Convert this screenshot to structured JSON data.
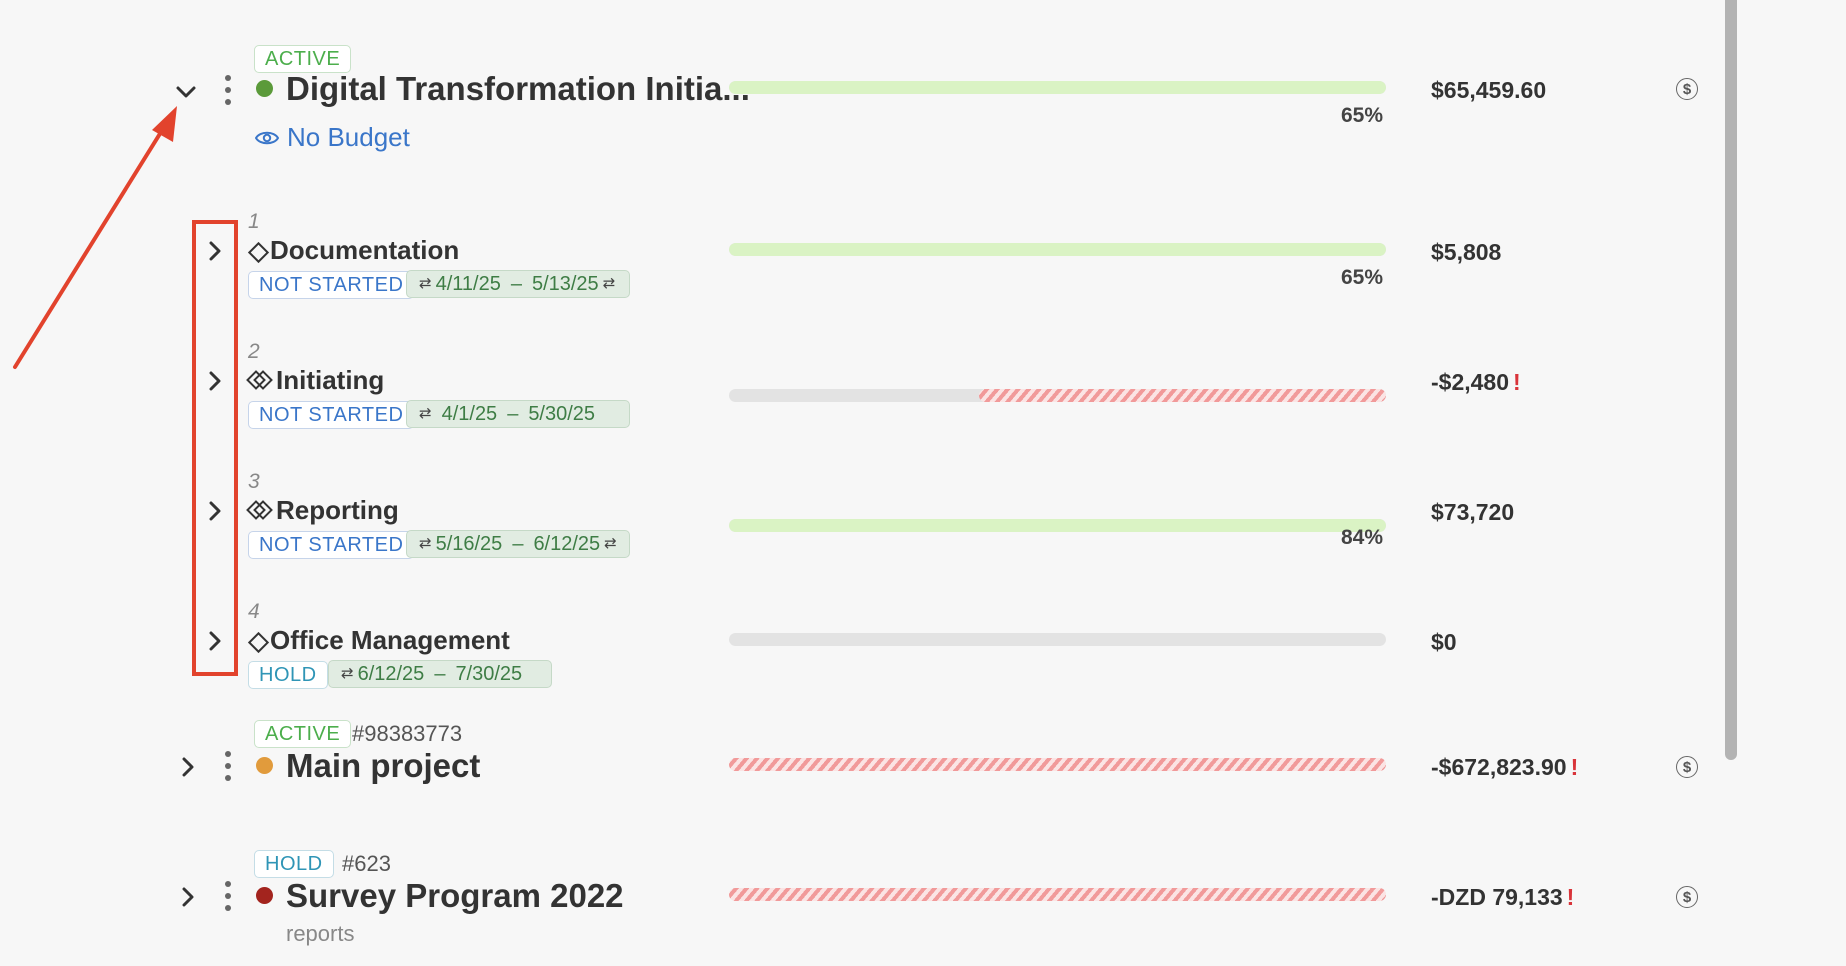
{
  "colors": {
    "accent_link": "#3a76c9",
    "active": "#4cae4c",
    "hold": "#2f95b6",
    "not_started": "#3a76c9",
    "progress_fill": "#daf3c4",
    "over_budget": "#f19a9a",
    "annotation": "#e2432d"
  },
  "projects": [
    {
      "status": "ACTIVE",
      "id": "",
      "name": "Digital Transformation Initia...",
      "dot_color": "#5b9a3a",
      "budget_link": "No Budget",
      "amount": "$65,459.60",
      "over_budget": false,
      "progress_percent": 65,
      "progress_label": "65%",
      "expanded": true
    },
    {
      "status": "ACTIVE",
      "id": "#98383773",
      "name": "Main project",
      "dot_color": "#e19b3c",
      "amount": "-$672,823.90",
      "over_budget": true,
      "exclamation": "!",
      "expanded": false
    },
    {
      "status": "HOLD",
      "id": "#623",
      "name": "Survey Program 2022",
      "dot_color": "#a3241e",
      "subtext": "reports",
      "amount": "-DZD 79,133",
      "over_budget": true,
      "exclamation": "!",
      "expanded": false
    }
  ],
  "phases": [
    {
      "number": "1",
      "name": "Documentation",
      "status": "NOT STARTED",
      "start": "4/11/25",
      "sep": "–",
      "end": "5/13/25",
      "amount": "$5,808",
      "progress_percent": 65,
      "progress_label": "65%"
    },
    {
      "number": "2",
      "name": "Initiating",
      "status": "NOT STARTED",
      "start": "4/1/25",
      "sep": "–",
      "end": "5/30/25",
      "amount": "-$2,480",
      "exclamation": "!",
      "over_budget_fraction": 0.62
    },
    {
      "number": "3",
      "name": "Reporting",
      "status": "NOT STARTED",
      "start": "5/16/25",
      "sep": "–",
      "end": "6/12/25",
      "amount": "$73,720",
      "progress_percent": 84,
      "progress_label": "84%"
    },
    {
      "number": "4",
      "name": "Office Management",
      "status": "HOLD",
      "start": "6/12/25",
      "sep": "–",
      "end": "7/30/25",
      "amount": "$0",
      "progress_percent": 0
    }
  ],
  "icons": {
    "expand_down": "chevron-down-icon",
    "expand_right": "chevron-right-icon",
    "menu": "kebab-menu-icon",
    "eye": "eye-icon",
    "dollar": "dollar-circle-icon",
    "milestone": "diamond-icon",
    "date_sync": "sync-icon"
  }
}
